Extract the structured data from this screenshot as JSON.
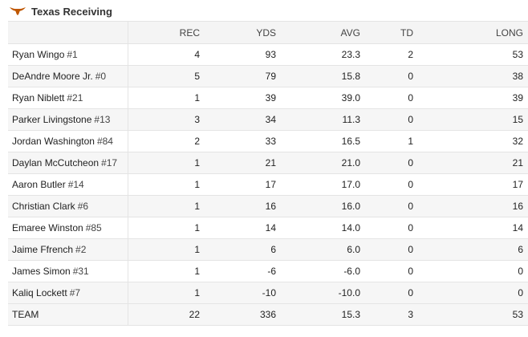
{
  "header": {
    "logo_icon": "longhorn-icon",
    "logo_color": "#bf5700",
    "title": "Texas Receiving"
  },
  "columns": [
    "",
    "REC",
    "YDS",
    "AVG",
    "TD",
    "LONG"
  ],
  "rows": [
    {
      "name": "Ryan Wingo",
      "number": "#1",
      "rec": "4",
      "yds": "93",
      "avg": "23.3",
      "td": "2",
      "long": "53"
    },
    {
      "name": "DeAndre Moore Jr.",
      "number": "#0",
      "rec": "5",
      "yds": "79",
      "avg": "15.8",
      "td": "0",
      "long": "38"
    },
    {
      "name": "Ryan Niblett",
      "number": "#21",
      "rec": "1",
      "yds": "39",
      "avg": "39.0",
      "td": "0",
      "long": "39"
    },
    {
      "name": "Parker Livingstone",
      "number": "#13",
      "rec": "3",
      "yds": "34",
      "avg": "11.3",
      "td": "0",
      "long": "15"
    },
    {
      "name": "Jordan Washington",
      "number": "#84",
      "rec": "2",
      "yds": "33",
      "avg": "16.5",
      "td": "1",
      "long": "32"
    },
    {
      "name": "Daylan McCutcheon",
      "number": "#17",
      "rec": "1",
      "yds": "21",
      "avg": "21.0",
      "td": "0",
      "long": "21"
    },
    {
      "name": "Aaron Butler",
      "number": "#14",
      "rec": "1",
      "yds": "17",
      "avg": "17.0",
      "td": "0",
      "long": "17"
    },
    {
      "name": "Christian Clark",
      "number": "#6",
      "rec": "1",
      "yds": "16",
      "avg": "16.0",
      "td": "0",
      "long": "16"
    },
    {
      "name": "Emaree Winston",
      "number": "#85",
      "rec": "1",
      "yds": "14",
      "avg": "14.0",
      "td": "0",
      "long": "14"
    },
    {
      "name": "Jaime Ffrench",
      "number": "#2",
      "rec": "1",
      "yds": "6",
      "avg": "6.0",
      "td": "0",
      "long": "6"
    },
    {
      "name": "James Simon",
      "number": "#31",
      "rec": "1",
      "yds": "-6",
      "avg": "-6.0",
      "td": "0",
      "long": "0"
    },
    {
      "name": "Kaliq Lockett",
      "number": "#7",
      "rec": "1",
      "yds": "-10",
      "avg": "-10.0",
      "td": "0",
      "long": "0"
    }
  ],
  "team": {
    "name": "TEAM",
    "rec": "22",
    "yds": "336",
    "avg": "15.3",
    "td": "3",
    "long": "53"
  }
}
